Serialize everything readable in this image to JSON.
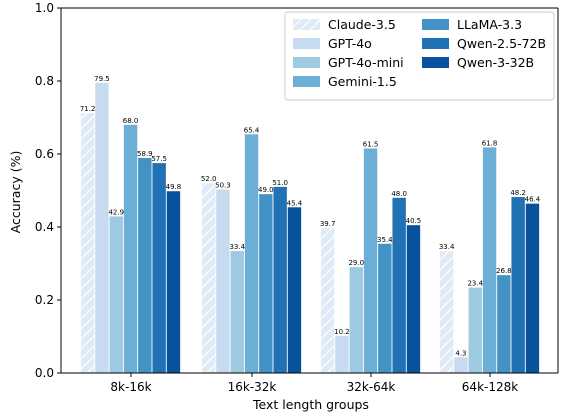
{
  "chart_data": {
    "type": "bar",
    "xlabel": "Text length groups",
    "ylabel": "Accuracy (%)",
    "ylim": [
      0,
      1.0
    ],
    "yticks": [
      "0.0",
      "0.2",
      "0.4",
      "0.6",
      "0.8",
      "1.0"
    ],
    "categories": [
      "8k-16k",
      "16k-32k",
      "32k-64k",
      "64k-128k"
    ],
    "grid": false,
    "legend_position": "top-right",
    "series": [
      {
        "name": "Claude-3.5",
        "color": "#deebf7",
        "hatch": "diagonal",
        "values": [
          71.2,
          52.0,
          39.7,
          33.4
        ]
      },
      {
        "name": "GPT-4o",
        "color": "#c6dbef",
        "values": [
          79.5,
          50.3,
          10.2,
          4.3
        ]
      },
      {
        "name": "GPT-4o-mini",
        "color": "#9ecae1",
        "values": [
          42.9,
          33.4,
          29.0,
          23.4
        ]
      },
      {
        "name": "Gemini-1.5",
        "color": "#6baed6",
        "values": [
          68.0,
          65.4,
          61.5,
          61.8
        ]
      },
      {
        "name": "LLaMA-3.3",
        "color": "#4292c6",
        "values": [
          58.9,
          49.0,
          35.4,
          26.8
        ]
      },
      {
        "name": "Qwen-2.5-72B",
        "color": "#2171b5",
        "values": [
          57.5,
          51.0,
          48.0,
          48.2
        ]
      },
      {
        "name": "Qwen-3-32B",
        "color": "#08519c",
        "values": [
          49.8,
          45.4,
          40.5,
          46.4
        ]
      }
    ]
  }
}
